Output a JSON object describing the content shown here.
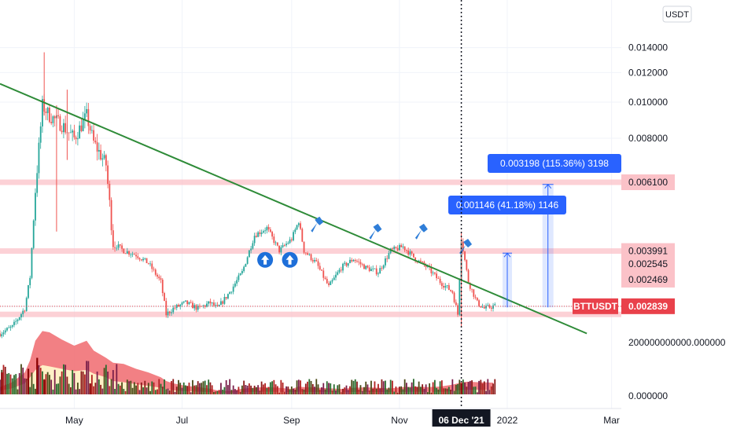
{
  "chart_data": {
    "type": "candlestick",
    "symbol": "BTTUSDT",
    "quote_currency": "USDT",
    "last_price": "0.002839",
    "y_axis": {
      "scale": "log",
      "ylim": [
        0.00215,
        0.0155
      ],
      "tick_labels": [
        "0.014000",
        "0.012000",
        "0.010000",
        "0.008000",
        "0.006100",
        "0.003991",
        "0.002545",
        "0.002469"
      ],
      "tick_values": [
        0.014,
        0.012,
        0.01,
        0.008,
        0.0061,
        0.003991,
        0.002545,
        0.002469
      ],
      "highlighted_labels": [
        "0.006100",
        "0.003991",
        "0.002545",
        "0.002469"
      ]
    },
    "x_axis": {
      "ticks": [
        {
          "label": "May",
          "date": "2021-05-01"
        },
        {
          "label": "Jul",
          "date": "2021-07-01"
        },
        {
          "label": "Sep",
          "date": "2021-09-01"
        },
        {
          "label": "Nov",
          "date": "2021-11-01"
        },
        {
          "label": "2022",
          "date": "2022-01-01"
        },
        {
          "label": "Mar",
          "date": "2022-03-01"
        }
      ],
      "crosshair_label": "06 Dec '21",
      "crosshair_date": "2021-12-06"
    },
    "price_series": {
      "dates": [
        "2021-03-20",
        "2021-03-27",
        "2021-04-03",
        "2021-04-06",
        "2021-04-09",
        "2021-04-13",
        "2021-04-17",
        "2021-04-24",
        "2021-05-01",
        "2021-05-08",
        "2021-05-12",
        "2021-05-19",
        "2021-05-23",
        "2021-05-29",
        "2021-06-05",
        "2021-06-12",
        "2021-06-19",
        "2021-06-22",
        "2021-06-26",
        "2021-07-03",
        "2021-07-10",
        "2021-07-17",
        "2021-07-21",
        "2021-07-28",
        "2021-08-04",
        "2021-08-11",
        "2021-08-18",
        "2021-08-25",
        "2021-09-01",
        "2021-09-05",
        "2021-09-08",
        "2021-09-15",
        "2021-09-22",
        "2021-09-29",
        "2021-10-06",
        "2021-10-13",
        "2021-10-20",
        "2021-10-27",
        "2021-11-03",
        "2021-11-10",
        "2021-11-17",
        "2021-11-24",
        "2021-12-01",
        "2021-12-04",
        "2021-12-06",
        "2021-12-10",
        "2021-12-15",
        "2021-12-19",
        "2021-12-24"
      ],
      "close": [
        0.0024,
        0.0025,
        0.0028,
        0.0034,
        0.0058,
        0.0098,
        0.0092,
        0.0087,
        0.008,
        0.0092,
        0.0078,
        0.0068,
        0.0042,
        0.004,
        0.0039,
        0.0037,
        0.0033,
        0.0027,
        0.0028,
        0.0029,
        0.0028,
        0.0029,
        0.0028,
        0.0031,
        0.0035,
        0.0044,
        0.0046,
        0.004,
        0.0043,
        0.0048,
        0.004,
        0.0037,
        0.0032,
        0.0036,
        0.0038,
        0.0036,
        0.0035,
        0.004,
        0.0041,
        0.0038,
        0.0036,
        0.0033,
        0.0031,
        0.0027,
        0.0043,
        0.0033,
        0.0029,
        0.0028,
        0.00284
      ]
    },
    "volume_series": {
      "y_tick_labels": [
        "200000000000.000000",
        "0.000000"
      ],
      "y_tick_values": [
        200000000000,
        0
      ],
      "envelope_max": [
        30000000000.0,
        50000000000.0,
        90000000000.0,
        140000000000.0,
        220000000000.0,
        260000000000.0,
        255000000000.0,
        225000000000.0,
        200000000000.0,
        220000000000.0,
        180000000000.0,
        150000000000.0,
        130000000000.0,
        125000000000.0,
        105000000000.0,
        90000000000.0,
        70000000000.0,
        55000000000.0,
        45000000000.0,
        35000000000.0,
        30000000000.0,
        23000000000.0,
        16000000000.0,
        14000000000.0,
        23000000000.0,
        28000000000.0,
        30000000000.0,
        27000000000.0,
        22000000000.0,
        32000000000.0,
        30000000000.0,
        28000000000.0,
        25000000000.0,
        22000000000.0,
        27000000000.0,
        29000000000.0,
        27000000000.0,
        24000000000.0,
        30000000000.0,
        32000000000.0,
        30000000000.0,
        32000000000.0,
        40000000000.0,
        45000000000.0,
        50000000000.0,
        52000000000.0,
        50000000000.0,
        49000000000.0,
        48000000000.0
      ],
      "envelope_mid": [
        15000000000.0,
        25000000000.0,
        45000000000.0,
        70000000000.0,
        100000000000.0,
        120000000000.0,
        115000000000.0,
        105000000000.0,
        95000000000.0,
        100000000000.0,
        85000000000.0,
        70000000000.0,
        55000000000.0,
        50000000000.0,
        42000000000.0,
        35000000000.0,
        27000000000.0,
        21000000000.0,
        17000000000.0,
        13000000000.0,
        11000000000.0,
        9000000000.0,
        7000000000.0,
        6000000000.0,
        8000000000.0,
        10000000000.0,
        11000000000.0,
        10000000000.0,
        9000000000.0,
        11000000000.0,
        10000000000.0,
        9500000000.0,
        9000000000.0,
        8000000000.0,
        9500000000.0,
        10000000000.0,
        9500000000.0,
        9000000000.0,
        10000000000.0,
        11000000000.0,
        10000000000.0,
        10000000000.0,
        13000000000.0,
        16000000000.0,
        18000000000.0,
        19000000000.0,
        19000000000.0,
        18000000000.0,
        18000000000.0
      ],
      "spikes": [
        {
          "date": "2021-03-21",
          "value": 90000000000.0
        },
        {
          "date": "2021-04-05",
          "value": 105000000000.0
        },
        {
          "date": "2021-04-10",
          "value": 150000000000.0
        },
        {
          "date": "2021-04-14",
          "value": 60000000000.0
        },
        {
          "date": "2021-05-10",
          "value": 45000000000.0
        },
        {
          "date": "2021-12-06",
          "value": 46000000000.0
        }
      ]
    },
    "annotations": {
      "horizontal_zones": [
        {
          "price": 0.0061,
          "color": "#fbc2c8"
        },
        {
          "price": 0.003991,
          "color": "#fbc2c8"
        },
        {
          "price": 0.0027,
          "color": "#fbc2c8"
        }
      ],
      "trendline": {
        "from": {
          "date": "2021-03-20",
          "price": 0.0112
        },
        "to": {
          "date": "2022-02-15",
          "price": 0.0024
        },
        "color": "#2e8b38"
      },
      "measure_callouts": [
        {
          "text": "0.003198 (115.36%) 3198",
          "from_price": 0.00282,
          "to_price": 0.00602,
          "date": "2022-01-24"
        },
        {
          "text": "0.001146 (41.18%) 1146",
          "from_price": 0.00282,
          "to_price": 0.00394,
          "date": "2022-01-01"
        }
      ],
      "up_arrow_markers": [
        {
          "date": "2021-08-17",
          "price": 0.00378
        },
        {
          "date": "2021-08-31",
          "price": 0.00378
        }
      ],
      "flag_markers": [
        {
          "date": "2021-09-15",
          "price": 0.0047
        },
        {
          "date": "2021-10-18",
          "price": 0.0045
        },
        {
          "date": "2021-11-13",
          "price": 0.0045
        },
        {
          "date": "2021-12-08",
          "price": 0.0041
        }
      ]
    },
    "colors": {
      "up": "#26a69a",
      "down": "#ef5350",
      "trendline": "#2e8b38",
      "zone": "#fbc2c8",
      "callout": "#2962ff",
      "symbol_tag": "#e9414b",
      "volume_max": "#f06a6f",
      "volume_mid": "#fff6c9"
    }
  }
}
